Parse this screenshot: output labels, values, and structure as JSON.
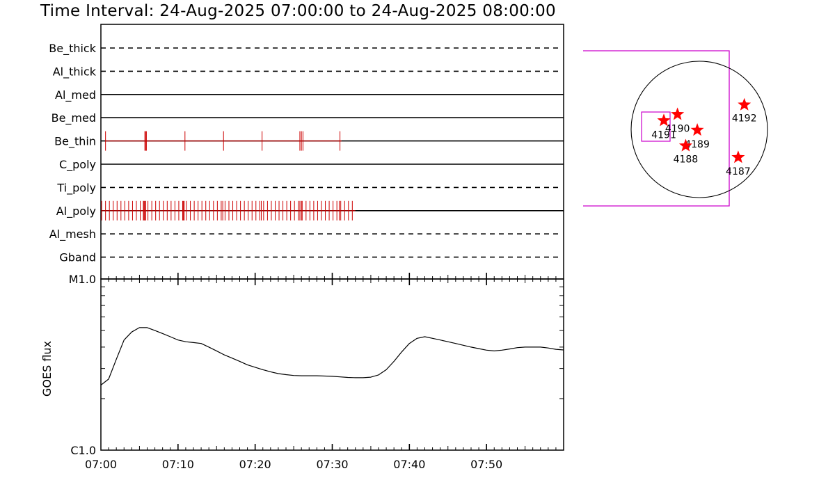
{
  "header": {
    "title": "Time Interval: 24-Aug-2025 07:00:00 to 24-Aug-2025 08:00:00"
  },
  "colors": {
    "event_marks": "#cc0000",
    "star_marks": "#ff0000",
    "fov_box": "#cc00cc",
    "axes": "#000000"
  },
  "chart_data": [
    {
      "type": "timeline",
      "name": "filter-wheel-timeline",
      "x_range_min": [
        0,
        60
      ],
      "x_tick_labels": [
        "07:00",
        "07:10",
        "07:20",
        "07:30",
        "07:40",
        "07:50"
      ],
      "x_tick_positions_min": [
        0,
        10,
        20,
        30,
        40,
        50
      ],
      "rows": [
        {
          "label": "Be_thick",
          "style": "dashed",
          "events_min": []
        },
        {
          "label": "Al_thick",
          "style": "dashed",
          "events_min": []
        },
        {
          "label": "Al_med",
          "style": "solid",
          "events_min": []
        },
        {
          "label": "Be_med",
          "style": "solid",
          "events_min": []
        },
        {
          "label": "Be_thin",
          "style": "solid",
          "events_min": [
            0.6,
            5.7,
            5.8,
            5.9,
            10.9,
            15.9,
            20.9,
            25.8,
            26.0,
            26.2,
            31.0
          ],
          "event_end_min": 31.2
        },
        {
          "label": "C_poly",
          "style": "solid",
          "events_min": []
        },
        {
          "label": "Ti_poly",
          "style": "dashed",
          "events_min": []
        },
        {
          "label": "Al_poly",
          "style": "solid",
          "events_min": [
            0.1,
            0.6,
            1.1,
            1.6,
            2.1,
            2.6,
            3.1,
            3.6,
            4.1,
            4.6,
            5.1,
            5.5,
            5.6,
            5.7,
            5.8,
            6.1,
            6.6,
            7.1,
            7.6,
            8.1,
            8.6,
            9.1,
            9.6,
            10.1,
            10.6,
            10.7,
            10.8,
            11.1,
            11.6,
            12.1,
            12.6,
            13.1,
            13.6,
            14.1,
            14.6,
            15.1,
            15.6,
            15.8,
            16.1,
            16.6,
            17.1,
            17.6,
            18.1,
            18.6,
            19.1,
            19.6,
            20.1,
            20.6,
            20.8,
            21.1,
            21.6,
            22.1,
            22.6,
            23.1,
            23.6,
            24.1,
            24.6,
            25.1,
            25.6,
            25.8,
            26.0,
            26.1,
            26.6,
            27.1,
            27.6,
            28.1,
            28.6,
            29.1,
            29.6,
            30.1,
            30.6,
            30.9,
            31.1,
            31.6,
            32.1,
            32.6
          ],
          "event_end_min": 33.0
        },
        {
          "label": "Al_mesh",
          "style": "dashed",
          "events_min": []
        },
        {
          "label": "Gband",
          "style": "dashed",
          "events_min": []
        }
      ]
    },
    {
      "type": "line",
      "name": "goes-flux",
      "ylabel": "GOES flux",
      "yscale": "log",
      "ylim": [
        1e-06,
        1e-05
      ],
      "y_tick_labels": [
        "C1.0",
        "M1.0"
      ],
      "x_range_min": [
        0,
        60
      ],
      "x_tick_labels": [
        "07:00",
        "07:10",
        "07:20",
        "07:30",
        "07:40",
        "07:50"
      ],
      "series": [
        {
          "x_min": [
            0,
            1,
            2,
            3,
            4,
            5,
            6,
            7,
            8,
            9,
            10,
            11,
            12,
            13,
            14,
            15,
            16,
            17,
            18,
            19,
            20,
            21,
            22,
            23,
            24,
            25,
            26,
            27,
            28,
            29,
            30,
            31,
            32,
            33,
            34,
            35,
            36,
            37,
            38,
            39,
            40,
            41,
            42,
            43,
            44,
            45,
            46,
            47,
            48,
            49,
            50,
            51,
            52,
            53,
            54,
            55,
            56,
            57,
            58,
            59,
            60
          ],
          "y": [
            2.4e-06,
            2.6e-06,
            3.4e-06,
            4.4e-06,
            4.9e-06,
            5.2e-06,
            5.2e-06,
            5e-06,
            4.8e-06,
            4.6e-06,
            4.4e-06,
            4.3e-06,
            4.25e-06,
            4.2e-06,
            4e-06,
            3.8e-06,
            3.6e-06,
            3.45e-06,
            3.3e-06,
            3.15e-06,
            3.05e-06,
            2.95e-06,
            2.87e-06,
            2.8e-06,
            2.76e-06,
            2.73e-06,
            2.72e-06,
            2.72e-06,
            2.72e-06,
            2.71e-06,
            2.7e-06,
            2.68e-06,
            2.66e-06,
            2.65e-06,
            2.65e-06,
            2.67e-06,
            2.75e-06,
            2.95e-06,
            3.3e-06,
            3.75e-06,
            4.2e-06,
            4.5e-06,
            4.6e-06,
            4.5e-06,
            4.4e-06,
            4.3e-06,
            4.2e-06,
            4.1e-06,
            4e-06,
            3.92e-06,
            3.84e-06,
            3.8e-06,
            3.84e-06,
            3.9e-06,
            3.97e-06,
            4e-06,
            4e-06,
            4e-06,
            3.95e-06,
            3.88e-06,
            3.85e-06
          ]
        }
      ]
    },
    {
      "type": "scatter",
      "name": "solar-disk-map",
      "points": [
        {
          "label": "4192",
          "x": 0.66,
          "y": 0.36
        },
        {
          "label": "4190",
          "x": -0.32,
          "y": 0.22
        },
        {
          "label": "4191",
          "x": -0.52,
          "y": 0.13
        },
        {
          "label": "4189",
          "x": -0.03,
          "y": -0.01
        },
        {
          "label": "4188",
          "x": -0.2,
          "y": -0.24
        },
        {
          "label": "4187",
          "x": 0.57,
          "y": -0.41
        }
      ]
    }
  ]
}
